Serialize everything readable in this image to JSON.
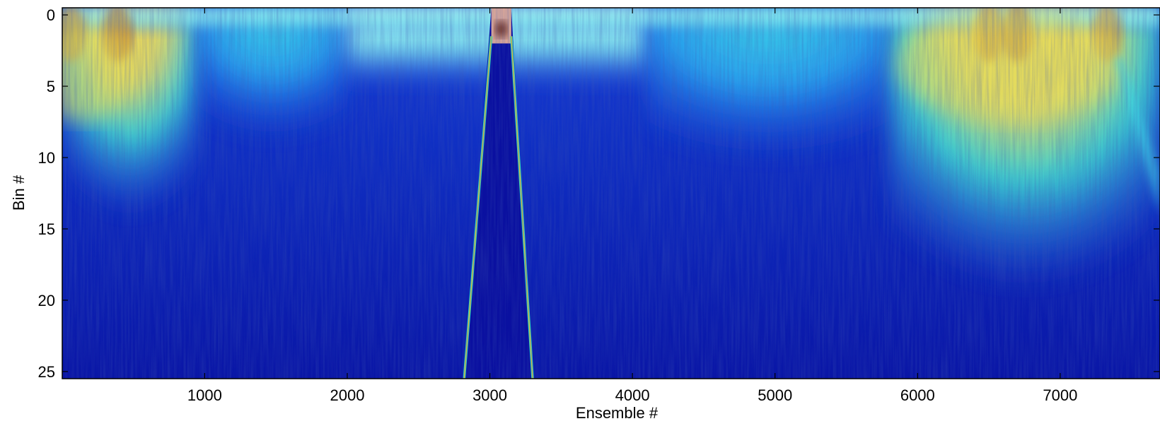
{
  "chart_data": {
    "type": "heatmap",
    "title": "",
    "xlabel": "Ensemble #",
    "ylabel": "Bin #",
    "xlim": [
      1,
      7700
    ],
    "ylim": [
      25.5,
      -0.5
    ],
    "y_reversed": true,
    "x_ticks": [
      1000,
      2000,
      3000,
      4000,
      5000,
      6000,
      7000
    ],
    "y_ticks": [
      0,
      5,
      10,
      15,
      20,
      25
    ],
    "colormap": "jet",
    "colors": {
      "deep_blue": "#0a12a8",
      "mid_blue": "#1c4fe0",
      "cyan": "#2fe0e6",
      "yellow": "#f3e34a",
      "orange": "#d89a2a",
      "dark_red": "#7a2a18"
    },
    "features": [
      {
        "x_range": [
          0,
          950
        ],
        "y_range": [
          0,
          11
        ],
        "level": "high"
      },
      {
        "x_range": [
          950,
          2000
        ],
        "y_range": [
          0,
          6
        ],
        "level": "medium"
      },
      {
        "x_range": [
          2000,
          4100
        ],
        "y_range": [
          0,
          3
        ],
        "level": "low"
      },
      {
        "x_range": [
          4100,
          5800
        ],
        "y_range": [
          0,
          7
        ],
        "level": "medium"
      },
      {
        "x_range": [
          5800,
          7700
        ],
        "y_range": [
          0,
          15
        ],
        "level": "high"
      },
      {
        "x_range": [
          2820,
          3300
        ],
        "y_range": [
          0,
          25
        ],
        "level": "beam-interference"
      }
    ]
  }
}
